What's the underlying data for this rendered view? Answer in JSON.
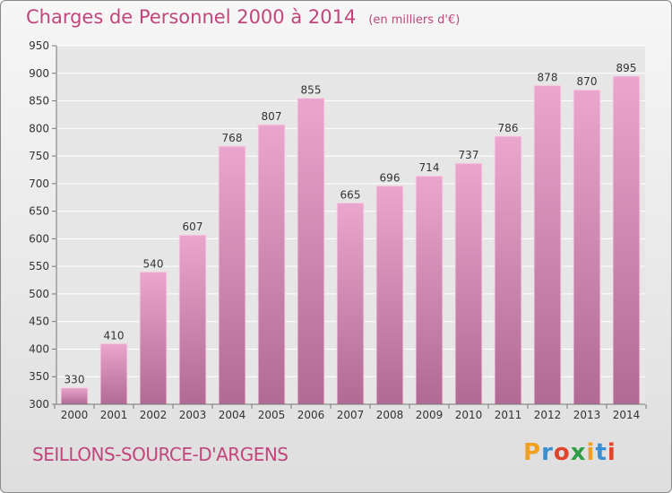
{
  "header": {
    "title": "Charges de Personnel 2000 à 2014",
    "unit": "(en milliers d'€)"
  },
  "footer": {
    "town": "SEILLONS-SOURCE-D'ARGENS"
  },
  "logo": {
    "text": "Proxiti",
    "colors": [
      "#f0a020",
      "#3a8fd0",
      "#e0452c",
      "#2f9e44",
      "#f0a020",
      "#3a8fd0",
      "#e0452c"
    ]
  },
  "colors": {
    "title": "#c0467c",
    "bar_top": "#eaa6cd",
    "bar_bottom": "#b06a94"
  },
  "chart_data": {
    "type": "bar",
    "title": "Charges de Personnel 2000 à 2014",
    "categories": [
      "2000",
      "2001",
      "2002",
      "2003",
      "2004",
      "2005",
      "2006",
      "2007",
      "2008",
      "2009",
      "2010",
      "2011",
      "2012",
      "2013",
      "2014"
    ],
    "values": [
      330,
      410,
      540,
      607,
      768,
      807,
      855,
      665,
      696,
      714,
      737,
      786,
      878,
      870,
      895
    ],
    "ylim": [
      300,
      950
    ],
    "yticks": [
      300,
      350,
      400,
      450,
      500,
      550,
      600,
      650,
      700,
      750,
      800,
      850,
      900,
      950
    ],
    "grid": true
  }
}
